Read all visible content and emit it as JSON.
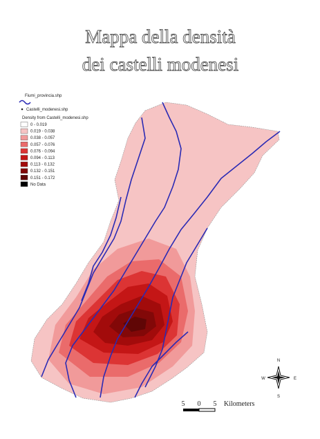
{
  "header": {
    "title_lines": [
      "Mappa della densità",
      "dei castelli modenesi"
    ]
  },
  "legend": {
    "rivers": "Fiumi_provincia.shp",
    "points": "Castelli_modenesi.shp",
    "density_title": "Density from Castelli_modenesi.shp",
    "classes": [
      {
        "label": "0 - 0.019",
        "color": "#ffffff"
      },
      {
        "label": "0.019 - 0.038",
        "color": "#f6c4c4"
      },
      {
        "label": "0.038 - 0.057",
        "color": "#f19a9a"
      },
      {
        "label": "0.057 - 0.076",
        "color": "#ea6b6b"
      },
      {
        "label": "0.076 - 0.094",
        "color": "#dc3434"
      },
      {
        "label": "0.094 - 0.113",
        "color": "#c41616"
      },
      {
        "label": "0.113 - 0.132",
        "color": "#a20b0b"
      },
      {
        "label": "0.132 - 0.151",
        "color": "#820808"
      },
      {
        "label": "0.151 - 0.172",
        "color": "#600606"
      },
      {
        "label": "No Data",
        "color": "#000000"
      }
    ]
  },
  "scale": {
    "labels": [
      "5",
      "0",
      "5"
    ],
    "unit": "Kilometers"
  },
  "compass": {
    "n": "N",
    "s": "S",
    "w": "W",
    "e": "E"
  }
}
